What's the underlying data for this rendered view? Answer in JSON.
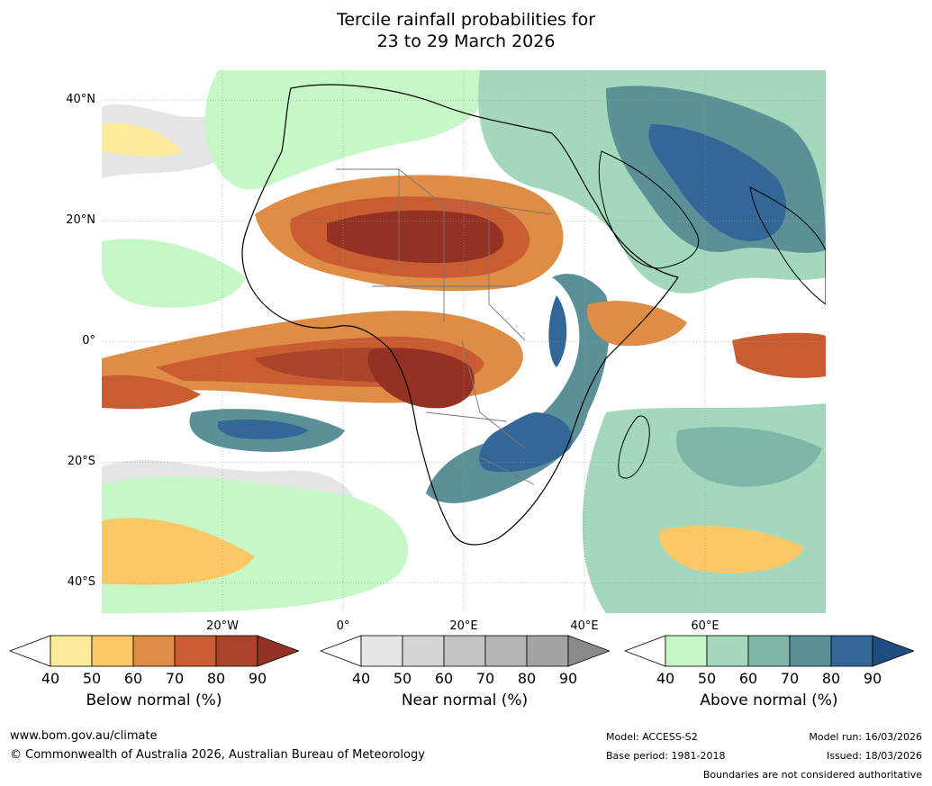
{
  "title": {
    "line1": "Tercile rainfall probabilities for",
    "line2": "23 to 29 March 2026"
  },
  "map": {
    "lat_labels": [
      "40°N",
      "20°N",
      "0°",
      "20°S",
      "40°S"
    ],
    "lon_labels": [
      "20°W",
      "0°",
      "20°E",
      "40°E",
      "60°E"
    ],
    "lat_values": [
      40,
      20,
      0,
      -20,
      -40
    ],
    "lon_values": [
      -20,
      0,
      20,
      40,
      60
    ],
    "lat_range": [
      -45,
      45
    ],
    "lon_range": [
      -40,
      80
    ]
  },
  "legend": {
    "ticks": [
      "40",
      "50",
      "60",
      "70",
      "80",
      "90"
    ],
    "colorbars": [
      {
        "name": "Below normal (%)",
        "colors": [
          "#ffeb9c",
          "#fdc765",
          "#df8c45",
          "#c95c31",
          "#a9432a",
          "#933222"
        ]
      },
      {
        "name": "Near normal (%)",
        "colors": [
          "#e5e5e5",
          "#d4d4d4",
          "#c3c3c3",
          "#b3b5b3",
          "#a3a3a3",
          "#8a8a8a"
        ]
      },
      {
        "name": "Above normal (%)",
        "colors": [
          "#c6f7c6",
          "#a3d8bc",
          "#80b5a9",
          "#5b9099",
          "#336797",
          "#1d4e7f"
        ]
      }
    ]
  },
  "footer": {
    "website": "www.bom.gov.au/climate",
    "copyright": "© Commonwealth of Australia 2026, Australian Bureau of Meteorology",
    "model": "Model: ACCESS-S2",
    "base_period": "Base period: 1981-2018",
    "model_run": "Model run: 16/03/2026",
    "issued": "Issued: 18/03/2026",
    "boundaries": "Boundaries are not considered authoritative"
  }
}
